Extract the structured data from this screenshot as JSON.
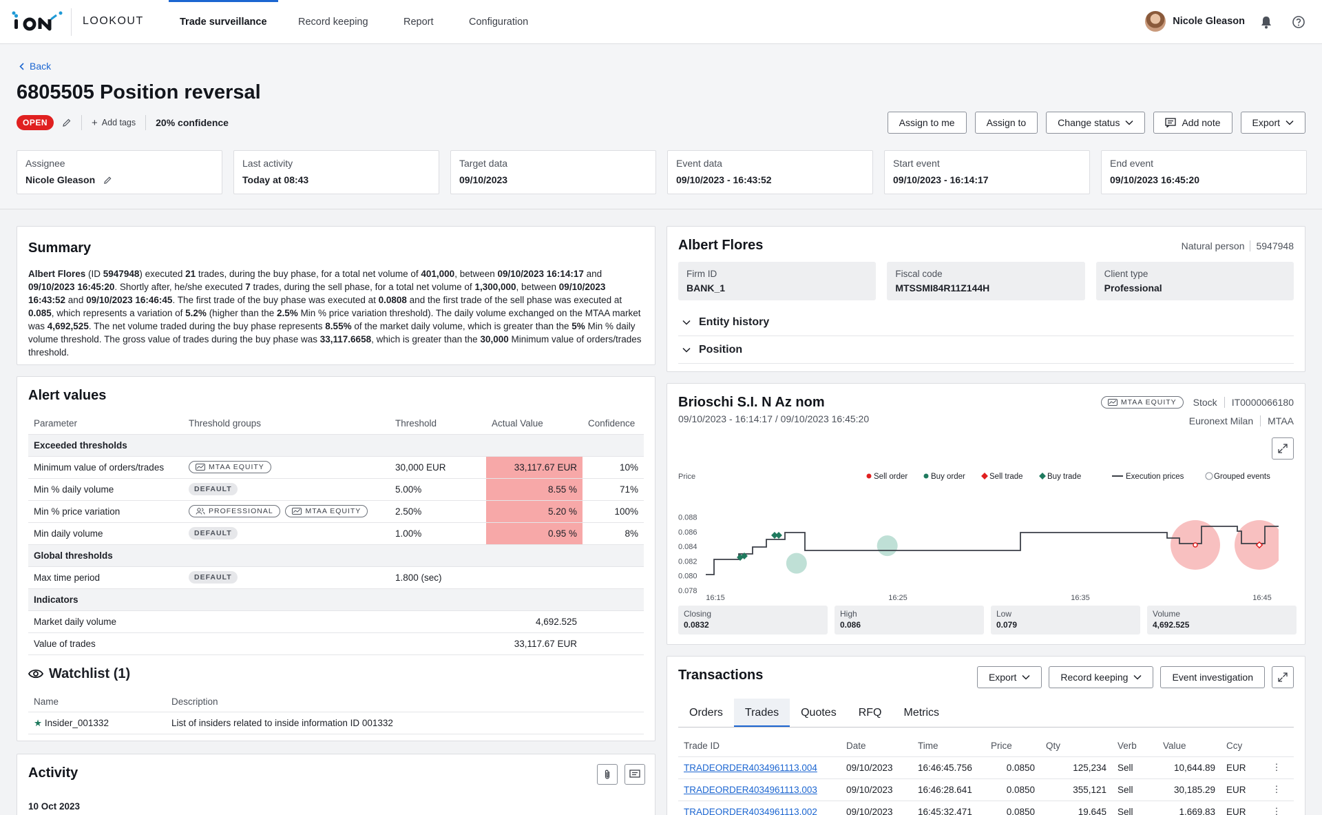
{
  "nav": {
    "brand": "LOOKOUT",
    "tabs": [
      {
        "label": "Trade surveillance",
        "active": true
      },
      {
        "label": "Record keeping"
      },
      {
        "label": "Report"
      },
      {
        "label": "Configuration"
      }
    ],
    "user_name": "Nicole Gleason"
  },
  "header": {
    "back_label": "Back",
    "title": "6805505 Position reversal",
    "status": "OPEN",
    "add_tags": "Add tags",
    "confidence": "20% confidence",
    "actions": {
      "assign_me": "Assign to me",
      "assign_to": "Assign to",
      "change_status": "Change status",
      "add_note": "Add note",
      "export": "Export"
    },
    "cards": [
      {
        "label": "Assignee",
        "value": "Nicole Gleason"
      },
      {
        "label": "Last activity",
        "value": "Today at 08:43"
      },
      {
        "label": "Target data",
        "value": "09/10/2023"
      },
      {
        "label": "Event data",
        "value": "09/10/2023 - 16:43:52"
      },
      {
        "label": "Start event",
        "value": "09/10/2023 - 16:14:17"
      },
      {
        "label": "End event",
        "value": "09/10/2023 16:45:20"
      }
    ]
  },
  "summary": {
    "title": "Summary",
    "parts": [
      {
        "t": "Albert Flores",
        "b": true
      },
      {
        "t": " (ID "
      },
      {
        "t": "5947948",
        "b": true
      },
      {
        "t": ") executed "
      },
      {
        "t": "21",
        "b": true
      },
      {
        "t": " trades, during the buy phase, for a total net volume of "
      },
      {
        "t": "401,000",
        "b": true
      },
      {
        "t": ", between "
      },
      {
        "t": "09/10/2023 16:14:17",
        "b": true
      },
      {
        "t": " and "
      },
      {
        "t": "09/10/2023 16:45:20",
        "b": true
      },
      {
        "t": ". Shortly after, he/she executed "
      },
      {
        "t": "7",
        "b": true
      },
      {
        "t": " trades, during the sell phase, for a total net volume of "
      },
      {
        "t": "1,300,000",
        "b": true
      },
      {
        "t": ", between "
      },
      {
        "t": "09/10/2023 16:43:52",
        "b": true
      },
      {
        "t": " and "
      },
      {
        "t": "09/10/2023 16:46:45",
        "b": true
      },
      {
        "t": ". The first trade of the buy phase was executed at "
      },
      {
        "t": "0.0808",
        "b": true
      },
      {
        "t": " and the first trade of the sell phase was executed at "
      },
      {
        "t": "0.085",
        "b": true
      },
      {
        "t": ", which represents a variation of "
      },
      {
        "t": "5.2%",
        "b": true
      },
      {
        "t": " (higher than the "
      },
      {
        "t": "2.5%",
        "b": true
      },
      {
        "t": " Min % price variation threshold). The daily volume exchanged on the MTAA market was "
      },
      {
        "t": "4,692,525",
        "b": true
      },
      {
        "t": ". The net volume traded during the buy phase represents "
      },
      {
        "t": "8.55%",
        "b": true
      },
      {
        "t": " of the market daily volume, which is greater than the "
      },
      {
        "t": "5%",
        "b": true
      },
      {
        "t": " Min % daily volume threshold. The gross value of trades during the buy phase was "
      },
      {
        "t": "33,117.6658",
        "b": true
      },
      {
        "t": ", which is greater than the "
      },
      {
        "t": "30,000",
        "b": true
      },
      {
        "t": " Minimum value of orders/trades threshold."
      }
    ]
  },
  "alerts": {
    "title": "Alert values",
    "columns": [
      "Parameter",
      "Threshold groups",
      "Threshold",
      "Actual Value",
      "Confidence"
    ],
    "groups": {
      "exceeded": "Exceeded thresholds",
      "global": "Global thresholds",
      "indicators": "Indicators"
    },
    "rows": [
      {
        "param": "Minimum value of orders/trades",
        "threshold": "30,000 EUR",
        "actual": "33,117.67 EUR",
        "confidence": "10%"
      },
      {
        "param": "Min % daily volume",
        "threshold": "5.00%",
        "actual": "8.55 %",
        "confidence": "71%"
      },
      {
        "param": "Min % price variation",
        "threshold": "2.50%",
        "actual": "5.20 %",
        "confidence": "100%"
      },
      {
        "param": "Min daily volume",
        "threshold": "1.00%",
        "actual": "0.95 %",
        "confidence": "8%"
      },
      {
        "param": "Max time period",
        "threshold": "1.800 (sec)"
      },
      {
        "param": "Market daily volume",
        "actual": "4,692.525"
      },
      {
        "param": "Value of trades",
        "actual": "33,117.67 EUR"
      }
    ],
    "tags": {
      "mtaa": "MTAA EQUITY",
      "default": "DEFAULT",
      "professional": "PROFESSIONAL"
    }
  },
  "watchlist": {
    "title": "Watchlist (1)",
    "columns": [
      "Name",
      "Description"
    ],
    "rows": [
      {
        "name": "Insider_001332",
        "description": "List of insiders related to inside information ID 001332"
      }
    ]
  },
  "activity": {
    "title": "Activity",
    "date": "10 Oct 2023"
  },
  "entity": {
    "name": "Albert Flores",
    "type": "Natural person",
    "id": "5947948",
    "fields": [
      {
        "label": "Firm ID",
        "value": "BANK_1"
      },
      {
        "label": "Fiscal code",
        "value": "MTSSMI84R11Z144H"
      },
      {
        "label": "Client type",
        "value": "Professional"
      }
    ],
    "accordions": [
      "Entity history",
      "Position"
    ]
  },
  "instrument": {
    "name": "Brioschi S.I. N Az nom",
    "range": "09/10/2023 - 16:14:17 / 09/10/2023 16:45:20",
    "tag": "MTAA EQUITY",
    "kind": "Stock",
    "isin": "IT0000066180",
    "venue": "Euronext Milan",
    "market": "MTAA",
    "stats": [
      {
        "label": "Closing",
        "value": "0.0832"
      },
      {
        "label": "High",
        "value": "0.086"
      },
      {
        "label": "Low",
        "value": "0.079"
      },
      {
        "label": "Volume",
        "value": "4,692.525"
      }
    ]
  },
  "chart_data": {
    "type": "line",
    "ylabel": "Price",
    "legend": [
      "Sell order",
      "Buy order",
      "Sell trade",
      "Buy trade",
      "Execution prices",
      "Grouped events"
    ],
    "legend_colors": [
      "#e02020",
      "#1f7a5e",
      "#e02020",
      "#1f7a5e",
      "#3b3f47",
      "#8b9099"
    ],
    "yticks": [
      "0.088",
      "0.086",
      "0.084",
      "0.082",
      "0.080",
      "0.078"
    ],
    "xticks": [
      "16:15",
      "16:25",
      "16:35",
      "16:45"
    ],
    "ylim": [
      0.078,
      0.089
    ],
    "xlim": [
      16.1,
      16.85
    ],
    "execution_prices": [
      [
        16.1,
        0.0793
      ],
      [
        16.12,
        0.0793
      ],
      [
        16.12,
        0.0808
      ],
      [
        16.2,
        0.0808
      ],
      [
        16.2,
        0.0815
      ],
      [
        16.24,
        0.0815
      ],
      [
        16.24,
        0.0825
      ],
      [
        16.28,
        0.0825
      ],
      [
        16.28,
        0.0832
      ],
      [
        16.34,
        0.0832
      ],
      [
        16.34,
        0.084
      ],
      [
        16.4,
        0.084
      ],
      [
        16.4,
        0.0821
      ],
      [
        16.72,
        0.0821
      ],
      [
        16.72,
        0.084
      ],
      [
        16.85,
        0.084
      ]
    ],
    "buy_trades": [
      [
        16.2,
        0.0815
      ],
      [
        16.24,
        0.0818
      ],
      [
        16.33,
        0.084
      ],
      [
        16.35,
        0.0841
      ]
    ],
    "grouped_buy": [
      [
        16.22,
        0.0817
      ],
      [
        16.34,
        0.0841
      ]
    ],
    "sell_orders": [
      [
        17.0,
        0.085
      ],
      [
        17.1,
        0.085
      ]
    ]
  },
  "transactions": {
    "title": "Transactions",
    "buttons": {
      "export": "Export",
      "record": "Record keeping",
      "event": "Event investigation"
    },
    "tabs": [
      "Orders",
      "Trades",
      "Quotes",
      "RFQ",
      "Metrics"
    ],
    "active_tab": 1,
    "columns": [
      "Trade ID",
      "Date",
      "Time",
      "Price",
      "Qty",
      "Verb",
      "Value",
      "Ccy"
    ],
    "rows": [
      {
        "id": "TRADEORDER4034961113.004",
        "date": "09/10/2023",
        "time": "16:46:45.756",
        "price": "0.0850",
        "qty": "125,234",
        "verb": "Sell",
        "value": "10,644.89",
        "ccy": "EUR"
      },
      {
        "id": "TRADEORDER4034961113.003",
        "date": "09/10/2023",
        "time": "16:46:28.641",
        "price": "0.0850",
        "qty": "355,121",
        "verb": "Sell",
        "value": "30,185.29",
        "ccy": "EUR"
      },
      {
        "id": "TRADEORDER4034961113.002",
        "date": "09/10/2023",
        "time": "16:45:32.471",
        "price": "0.0850",
        "qty": "19,645",
        "verb": "Sell",
        "value": "1,669.83",
        "ccy": "EUR"
      }
    ]
  }
}
